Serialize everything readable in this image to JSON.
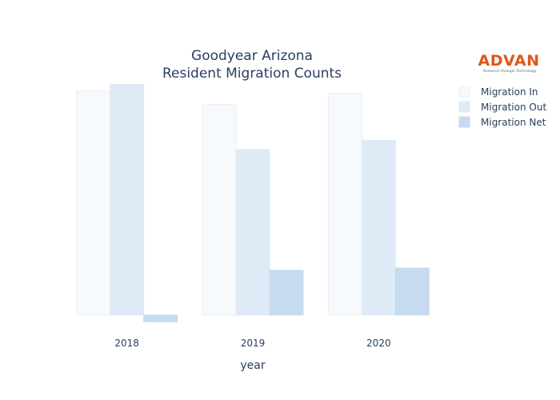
{
  "title_line1": "Goodyear Arizona",
  "title_line2": "Resident Migration Counts",
  "logo": {
    "name": "ADVAN",
    "tagline": "Research through Technology"
  },
  "colors": {
    "background": "#ffffff",
    "text": "#2a3f5f",
    "logo": "#e2541a"
  },
  "chart_data": {
    "type": "bar",
    "title": "Goodyear Arizona Resident Migration Counts",
    "xlabel": "year",
    "ylabel": "",
    "categories": [
      "2018",
      "2019",
      "2020"
    ],
    "series": [
      {
        "name": "Migration In",
        "color": "#f7fafd",
        "stroke": "#e8eef6",
        "values": [
          100,
          94,
          99
        ]
      },
      {
        "name": "Migration Out",
        "color": "#deeaf6",
        "stroke": "#deeaf6",
        "values": [
          103,
          74,
          78
        ]
      },
      {
        "name": "Migration Net",
        "color": "#c6dbef",
        "stroke": "#c6dbef",
        "values": [
          -3,
          20,
          21
        ]
      }
    ],
    "ylim": [
      -4,
      105
    ],
    "y_axis_visible": false,
    "grid": false,
    "legend_position": "top-right"
  }
}
